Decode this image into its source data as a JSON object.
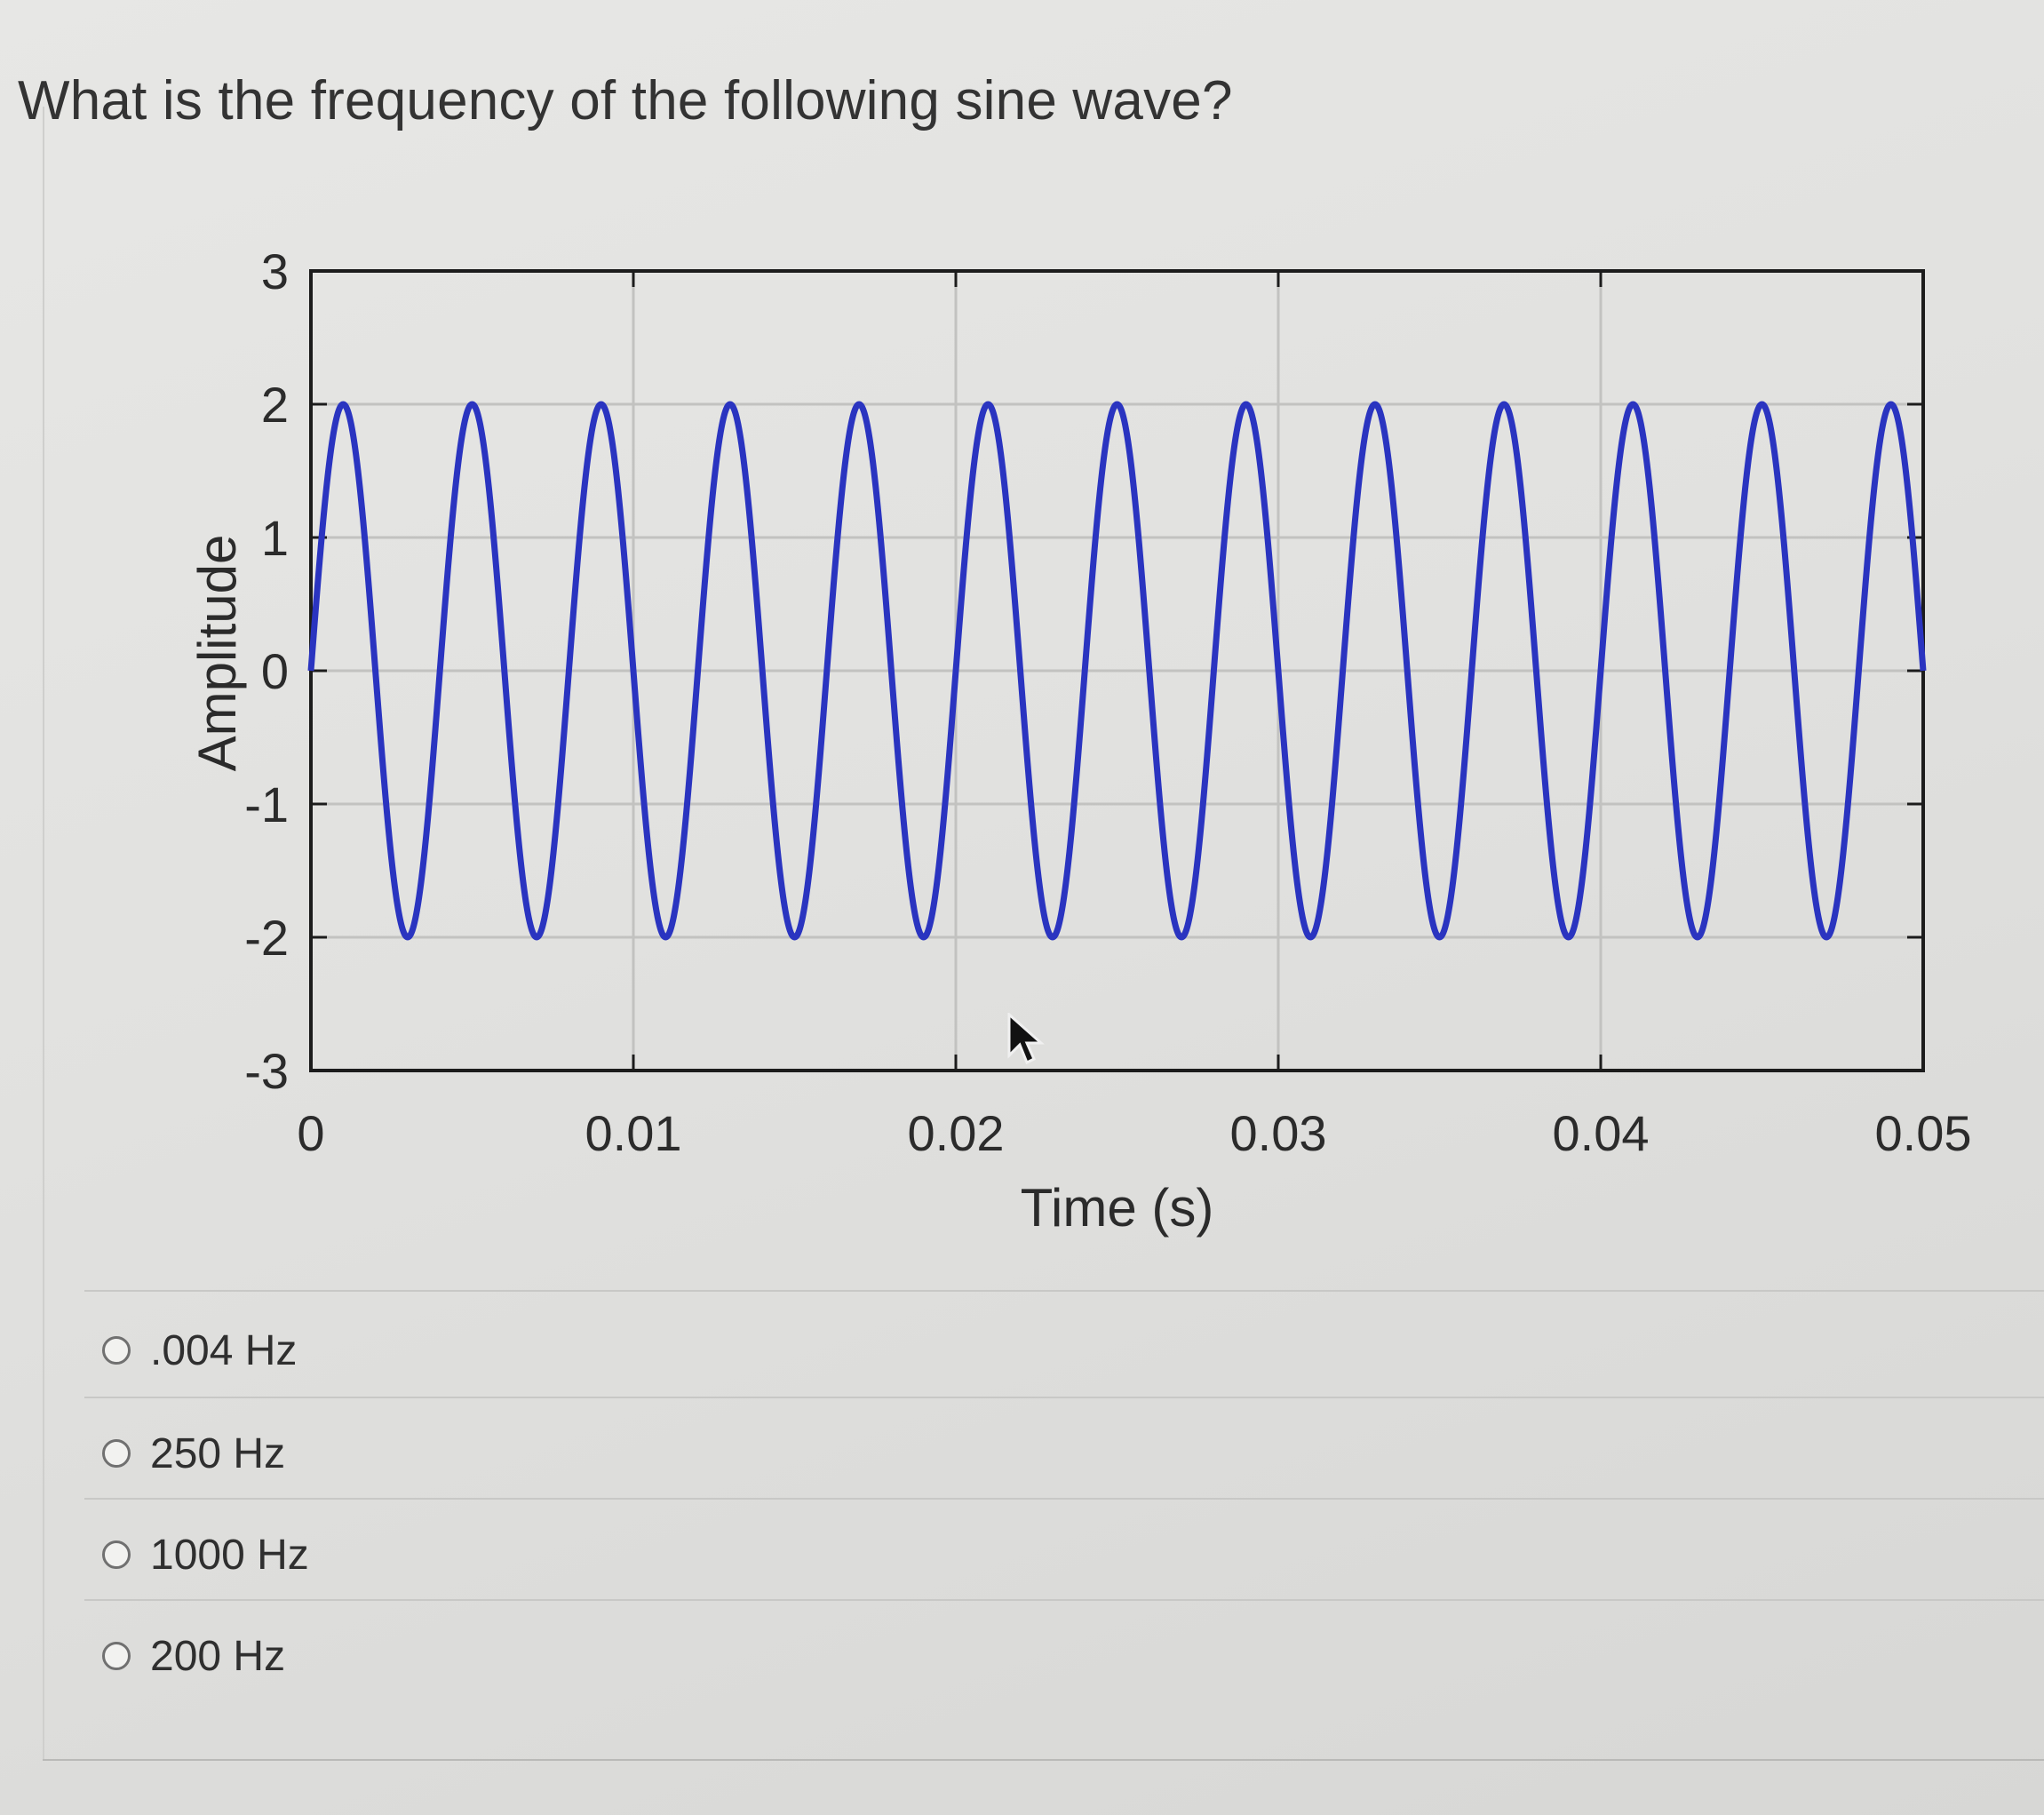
{
  "question": {
    "text": "What is the frequency of the following sine wave?"
  },
  "chart_data": {
    "type": "line",
    "title": "",
    "xlabel": "Time (s)",
    "ylabel": "Amplitude",
    "xlim": [
      0,
      0.05
    ],
    "ylim": [
      -3,
      3
    ],
    "x_ticks": [
      "0",
      "0.01",
      "0.02",
      "0.03",
      "0.04",
      "0.05"
    ],
    "y_ticks": [
      "3",
      "2",
      "1",
      "0",
      "-1",
      "-2",
      "-3"
    ],
    "grid": true,
    "legend": "none",
    "series": [
      {
        "function": "2*sin(2*pi*250*t)",
        "amplitude": 2,
        "frequency_hz": 250,
        "t_start": 0,
        "t_end": 0.05,
        "color": "#2a34c0"
      }
    ]
  },
  "options": [
    {
      "label": ".004 Hz",
      "selected": false
    },
    {
      "label": "250 Hz",
      "selected": false
    },
    {
      "label": "1000 Hz",
      "selected": false
    },
    {
      "label": "200 Hz",
      "selected": false
    }
  ]
}
